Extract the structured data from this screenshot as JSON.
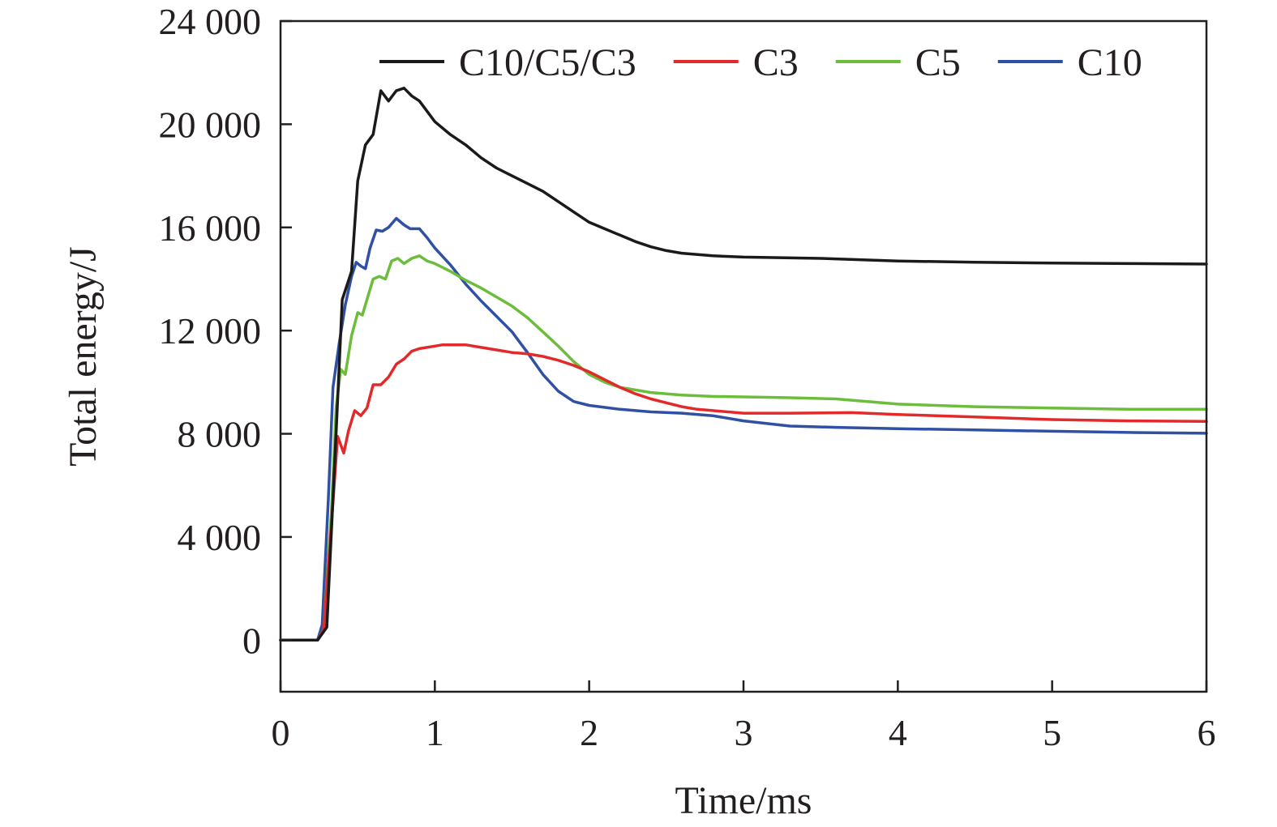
{
  "chart_data": {
    "type": "line",
    "xlabel": "Time/ms",
    "ylabel": "Total energy/J",
    "xlim": [
      0,
      6
    ],
    "ylim": [
      -2000,
      24000
    ],
    "x_ticks": [
      0,
      1,
      2,
      3,
      4,
      5,
      6
    ],
    "x_tick_labels": [
      "0",
      "1",
      "2",
      "3",
      "4",
      "5",
      "6"
    ],
    "y_ticks": [
      0,
      4000,
      8000,
      12000,
      16000,
      20000,
      24000
    ],
    "y_tick_labels": [
      "0",
      "4 000",
      "8 000",
      "12 000",
      "16 000",
      "20 000",
      "24 000"
    ],
    "grid": false,
    "legend_position": "top-right",
    "series": [
      {
        "name": "C10/C5/C3",
        "color": "#1a1a1a",
        "points": [
          [
            0,
            0
          ],
          [
            0.24,
            0
          ],
          [
            0.3,
            500
          ],
          [
            0.36,
            8000
          ],
          [
            0.4,
            13200
          ],
          [
            0.46,
            14300
          ],
          [
            0.5,
            17800
          ],
          [
            0.55,
            19200
          ],
          [
            0.6,
            19600
          ],
          [
            0.65,
            21300
          ],
          [
            0.7,
            20900
          ],
          [
            0.75,
            21300
          ],
          [
            0.8,
            21400
          ],
          [
            0.85,
            21100
          ],
          [
            0.9,
            20900
          ],
          [
            1.0,
            20100
          ],
          [
            1.1,
            19600
          ],
          [
            1.2,
            19200
          ],
          [
            1.3,
            18700
          ],
          [
            1.4,
            18300
          ],
          [
            1.5,
            18000
          ],
          [
            1.6,
            17700
          ],
          [
            1.7,
            17400
          ],
          [
            1.8,
            17000
          ],
          [
            1.9,
            16600
          ],
          [
            2.0,
            16200
          ],
          [
            2.1,
            15950
          ],
          [
            2.2,
            15700
          ],
          [
            2.3,
            15450
          ],
          [
            2.4,
            15250
          ],
          [
            2.5,
            15100
          ],
          [
            2.6,
            15000
          ],
          [
            2.8,
            14900
          ],
          [
            3.0,
            14850
          ],
          [
            3.5,
            14800
          ],
          [
            4.0,
            14700
          ],
          [
            4.5,
            14650
          ],
          [
            5.0,
            14620
          ],
          [
            5.5,
            14600
          ],
          [
            6.0,
            14580
          ]
        ]
      },
      {
        "name": "C3",
        "color": "#e32a2a",
        "points": [
          [
            0,
            0
          ],
          [
            0.24,
            0
          ],
          [
            0.28,
            400
          ],
          [
            0.33,
            4500
          ],
          [
            0.37,
            7900
          ],
          [
            0.41,
            7250
          ],
          [
            0.44,
            8100
          ],
          [
            0.48,
            8900
          ],
          [
            0.52,
            8700
          ],
          [
            0.56,
            9000
          ],
          [
            0.6,
            9900
          ],
          [
            0.65,
            9900
          ],
          [
            0.7,
            10200
          ],
          [
            0.75,
            10700
          ],
          [
            0.8,
            10900
          ],
          [
            0.85,
            11200
          ],
          [
            0.9,
            11300
          ],
          [
            1.0,
            11400
          ],
          [
            1.05,
            11450
          ],
          [
            1.1,
            11450
          ],
          [
            1.2,
            11450
          ],
          [
            1.3,
            11350
          ],
          [
            1.4,
            11250
          ],
          [
            1.5,
            11150
          ],
          [
            1.6,
            11100
          ],
          [
            1.7,
            11000
          ],
          [
            1.8,
            10850
          ],
          [
            1.9,
            10650
          ],
          [
            2.0,
            10400
          ],
          [
            2.1,
            10100
          ],
          [
            2.2,
            9800
          ],
          [
            2.3,
            9550
          ],
          [
            2.4,
            9350
          ],
          [
            2.5,
            9200
          ],
          [
            2.6,
            9050
          ],
          [
            2.7,
            8950
          ],
          [
            2.8,
            8900
          ],
          [
            3.0,
            8800
          ],
          [
            3.3,
            8800
          ],
          [
            3.7,
            8820
          ],
          [
            4.0,
            8750
          ],
          [
            4.5,
            8650
          ],
          [
            5.0,
            8550
          ],
          [
            5.5,
            8500
          ],
          [
            6.0,
            8480
          ]
        ]
      },
      {
        "name": "C5",
        "color": "#6cbd3b",
        "points": [
          [
            0,
            0
          ],
          [
            0.24,
            0
          ],
          [
            0.28,
            400
          ],
          [
            0.33,
            5000
          ],
          [
            0.36,
            9000
          ],
          [
            0.39,
            10500
          ],
          [
            0.42,
            10300
          ],
          [
            0.46,
            11800
          ],
          [
            0.5,
            12700
          ],
          [
            0.53,
            12600
          ],
          [
            0.56,
            13200
          ],
          [
            0.6,
            14000
          ],
          [
            0.64,
            14100
          ],
          [
            0.68,
            14000
          ],
          [
            0.72,
            14700
          ],
          [
            0.76,
            14800
          ],
          [
            0.8,
            14600
          ],
          [
            0.85,
            14800
          ],
          [
            0.9,
            14900
          ],
          [
            0.95,
            14700
          ],
          [
            1.0,
            14600
          ],
          [
            1.1,
            14300
          ],
          [
            1.2,
            13950
          ],
          [
            1.3,
            13650
          ],
          [
            1.4,
            13300
          ],
          [
            1.5,
            12950
          ],
          [
            1.6,
            12500
          ],
          [
            1.7,
            11950
          ],
          [
            1.8,
            11400
          ],
          [
            1.9,
            10800
          ],
          [
            2.0,
            10300
          ],
          [
            2.1,
            10000
          ],
          [
            2.2,
            9800
          ],
          [
            2.4,
            9600
          ],
          [
            2.6,
            9500
          ],
          [
            2.8,
            9450
          ],
          [
            3.0,
            9430
          ],
          [
            3.3,
            9400
          ],
          [
            3.6,
            9350
          ],
          [
            4.0,
            9150
          ],
          [
            4.5,
            9050
          ],
          [
            5.0,
            9000
          ],
          [
            5.5,
            8950
          ],
          [
            6.0,
            8950
          ]
        ]
      },
      {
        "name": "C10",
        "color": "#3050a3",
        "points": [
          [
            0,
            0
          ],
          [
            0.24,
            0
          ],
          [
            0.27,
            600
          ],
          [
            0.31,
            5500
          ],
          [
            0.34,
            9800
          ],
          [
            0.38,
            11500
          ],
          [
            0.42,
            13000
          ],
          [
            0.46,
            14100
          ],
          [
            0.49,
            14650
          ],
          [
            0.52,
            14500
          ],
          [
            0.55,
            14400
          ],
          [
            0.58,
            15200
          ],
          [
            0.62,
            15900
          ],
          [
            0.66,
            15850
          ],
          [
            0.7,
            16000
          ],
          [
            0.75,
            16350
          ],
          [
            0.8,
            16100
          ],
          [
            0.84,
            15950
          ],
          [
            0.9,
            15950
          ],
          [
            0.95,
            15600
          ],
          [
            1.0,
            15200
          ],
          [
            1.1,
            14550
          ],
          [
            1.2,
            13800
          ],
          [
            1.3,
            13150
          ],
          [
            1.4,
            12550
          ],
          [
            1.5,
            11950
          ],
          [
            1.6,
            11150
          ],
          [
            1.7,
            10300
          ],
          [
            1.8,
            9650
          ],
          [
            1.9,
            9250
          ],
          [
            2.0,
            9100
          ],
          [
            2.2,
            8950
          ],
          [
            2.4,
            8850
          ],
          [
            2.6,
            8800
          ],
          [
            2.8,
            8700
          ],
          [
            3.0,
            8500
          ],
          [
            3.3,
            8300
          ],
          [
            3.6,
            8250
          ],
          [
            4.0,
            8200
          ],
          [
            4.5,
            8150
          ],
          [
            5.0,
            8100
          ],
          [
            5.5,
            8050
          ],
          [
            6.0,
            8020
          ]
        ]
      }
    ]
  }
}
